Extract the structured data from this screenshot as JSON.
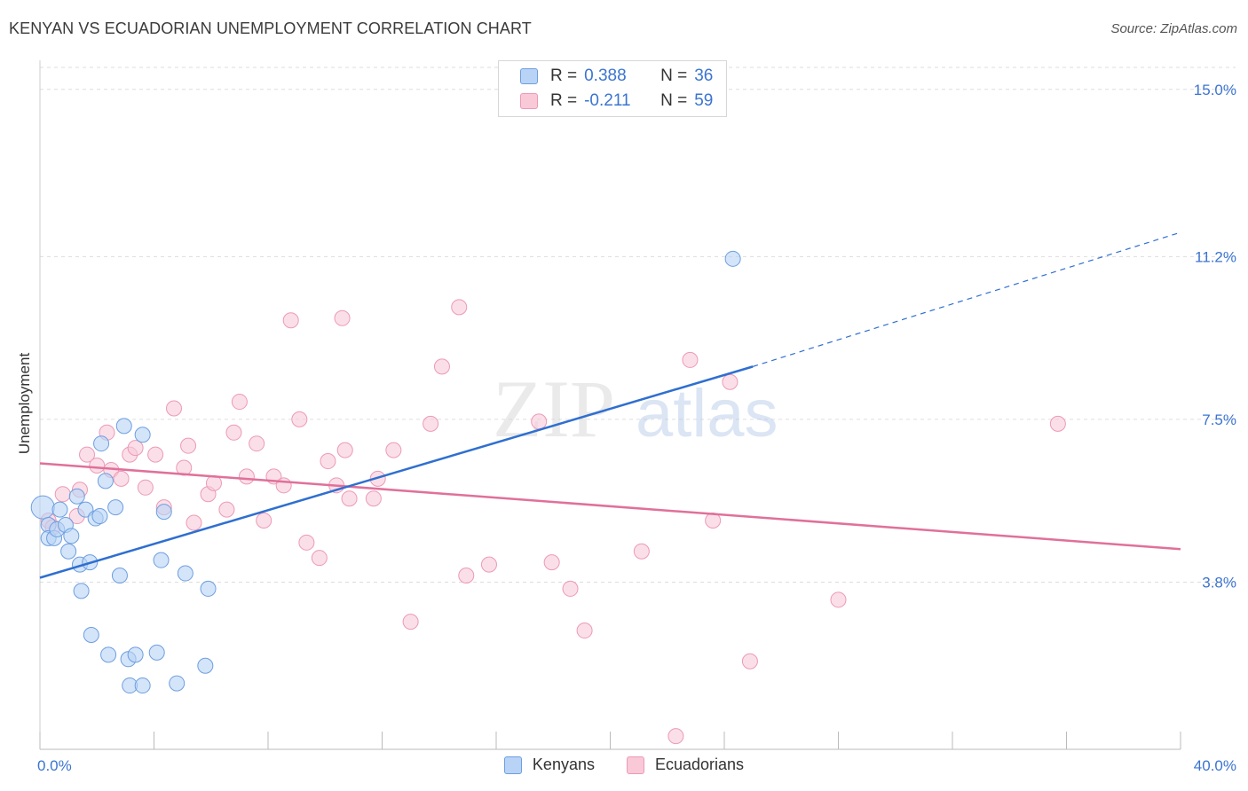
{
  "header": {
    "title": "KENYAN VS ECUADORIAN UNEMPLOYMENT CORRELATION CHART",
    "source": "Source: ZipAtlas.com"
  },
  "legend": {
    "series1": {
      "r_label": "R =",
      "r_value": "0.388",
      "n_label": "N =",
      "n_value": "36"
    },
    "series2": {
      "r_label": "R =",
      "r_value": "-0.211",
      "n_label": "N =",
      "n_value": "59"
    }
  },
  "bottom_legend": {
    "series1": "Kenyans",
    "series2": "Ecuadorians"
  },
  "watermark": {
    "zip": "ZIP",
    "atlas": "atlas"
  },
  "colors": {
    "kenyan_fill": "#b8d3f5",
    "kenyan_stroke": "#6d9ee0",
    "kenyan_line": "#2f6fd0",
    "ecuador_fill": "#f9c9d8",
    "ecuador_stroke": "#ec9ab5",
    "ecuador_line": "#e0709a",
    "tick_label": "#3b74d1",
    "grid": "#dddddd"
  },
  "chart_data": {
    "type": "scatter",
    "title": "KENYAN VS ECUADORIAN UNEMPLOYMENT CORRELATION CHART",
    "xlabel": "",
    "ylabel": "Unemployment",
    "xlim": [
      0,
      40
    ],
    "ylim": [
      0,
      15.5
    ],
    "x_tick_labels": [
      {
        "value": 0,
        "label": "0.0%"
      },
      {
        "value": 40,
        "label": "40.0%"
      }
    ],
    "y_ticks": [
      {
        "value": 3.8,
        "label": "3.8%"
      },
      {
        "value": 7.5,
        "label": "7.5%"
      },
      {
        "value": 11.2,
        "label": "11.2%"
      },
      {
        "value": 15.0,
        "label": "15.0%"
      }
    ],
    "grid": true,
    "series": [
      {
        "name": "Kenyans",
        "r": 0.388,
        "n": 36,
        "trend": {
          "x0": 0,
          "y0": 3.9,
          "x1": 25,
          "y1": 8.7,
          "dash_x1": 40,
          "dash_y1": 11.75
        },
        "points": [
          [
            0.1,
            5.5
          ],
          [
            0.3,
            5.1
          ],
          [
            0.3,
            4.8
          ],
          [
            0.5,
            4.8
          ],
          [
            0.6,
            5.0
          ],
          [
            0.7,
            5.45
          ],
          [
            0.9,
            5.1
          ],
          [
            1.0,
            4.5
          ],
          [
            1.1,
            4.85
          ],
          [
            1.3,
            5.75
          ],
          [
            1.4,
            4.2
          ],
          [
            1.45,
            3.6
          ],
          [
            1.6,
            5.45
          ],
          [
            1.75,
            4.25
          ],
          [
            1.8,
            2.6
          ],
          [
            1.95,
            5.25
          ],
          [
            2.1,
            5.3
          ],
          [
            2.15,
            6.95
          ],
          [
            2.4,
            2.15
          ],
          [
            2.3,
            6.1
          ],
          [
            2.65,
            5.5
          ],
          [
            2.8,
            3.95
          ],
          [
            2.95,
            7.35
          ],
          [
            3.1,
            2.05
          ],
          [
            3.15,
            1.45
          ],
          [
            3.35,
            2.15
          ],
          [
            3.6,
            1.45
          ],
          [
            3.6,
            7.15
          ],
          [
            4.1,
            2.2
          ],
          [
            4.25,
            4.3
          ],
          [
            4.35,
            5.4
          ],
          [
            4.8,
            1.5
          ],
          [
            5.1,
            4.0
          ],
          [
            5.8,
            1.9
          ],
          [
            5.9,
            3.65
          ],
          [
            24.3,
            11.15
          ]
        ]
      },
      {
        "name": "Ecuadorians",
        "r": -0.211,
        "n": 59,
        "trend": {
          "x0": 0,
          "y0": 6.5,
          "x1": 40,
          "y1": 4.55
        },
        "points": [
          [
            0.3,
            5.2
          ],
          [
            0.45,
            5.05
          ],
          [
            0.8,
            5.8
          ],
          [
            1.3,
            5.3
          ],
          [
            1.4,
            5.9
          ],
          [
            1.65,
            6.7
          ],
          [
            2.0,
            6.45
          ],
          [
            2.35,
            7.2
          ],
          [
            2.5,
            6.35
          ],
          [
            2.85,
            6.15
          ],
          [
            3.15,
            6.7
          ],
          [
            3.35,
            6.85
          ],
          [
            3.7,
            5.95
          ],
          [
            4.05,
            6.7
          ],
          [
            4.35,
            5.5
          ],
          [
            4.7,
            7.75
          ],
          [
            5.05,
            6.4
          ],
          [
            5.2,
            6.9
          ],
          [
            5.4,
            5.15
          ],
          [
            5.9,
            5.8
          ],
          [
            6.1,
            6.05
          ],
          [
            6.55,
            5.45
          ],
          [
            6.8,
            7.2
          ],
          [
            7.0,
            7.9
          ],
          [
            7.25,
            6.2
          ],
          [
            7.6,
            6.95
          ],
          [
            7.85,
            5.2
          ],
          [
            8.2,
            6.2
          ],
          [
            8.55,
            6.0
          ],
          [
            8.8,
            9.75
          ],
          [
            9.1,
            7.5
          ],
          [
            9.35,
            4.7
          ],
          [
            9.8,
            4.35
          ],
          [
            10.1,
            6.55
          ],
          [
            10.4,
            6.0
          ],
          [
            10.6,
            9.8
          ],
          [
            10.7,
            6.8
          ],
          [
            10.85,
            5.7
          ],
          [
            11.7,
            5.7
          ],
          [
            11.85,
            6.15
          ],
          [
            12.4,
            6.8
          ],
          [
            13.0,
            2.9
          ],
          [
            13.7,
            7.4
          ],
          [
            14.1,
            8.7
          ],
          [
            14.7,
            10.05
          ],
          [
            14.95,
            3.95
          ],
          [
            15.75,
            4.2
          ],
          [
            17.5,
            7.45
          ],
          [
            17.95,
            4.25
          ],
          [
            18.6,
            3.65
          ],
          [
            19.1,
            2.7
          ],
          [
            21.1,
            4.5
          ],
          [
            22.8,
            8.85
          ],
          [
            23.6,
            5.2
          ],
          [
            24.2,
            8.35
          ],
          [
            24.9,
            2.0
          ],
          [
            28.0,
            3.4
          ],
          [
            35.7,
            7.4
          ],
          [
            22.3,
            0.3
          ]
        ]
      }
    ]
  }
}
